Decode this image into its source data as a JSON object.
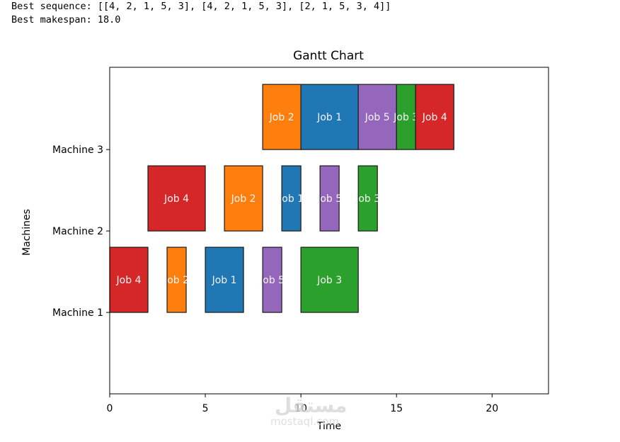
{
  "console": {
    "line1": "Best sequence: [[4, 2, 1, 5, 3], [4, 2, 1, 5, 3], [2, 1, 5, 3, 4]]",
    "line2": "Best makespan: 18.0"
  },
  "watermark": {
    "arabic": "مستقل",
    "latin": "mostaql.com"
  },
  "chart_data": {
    "type": "gantt",
    "title": "Gantt Chart",
    "xlabel": "Time",
    "ylabel": "Machines",
    "xlim": [
      0,
      22.95
    ],
    "ylim": [
      0,
      4.01
    ],
    "xticks": [
      0,
      5,
      10,
      15,
      20
    ],
    "yticks": [
      {
        "value": 1,
        "label": "Machine 1"
      },
      {
        "value": 2,
        "label": "Machine 2"
      },
      {
        "value": 3,
        "label": "Machine 3"
      }
    ],
    "bar_height": 0.8,
    "grid": false,
    "colors": {
      "Job 1": "#1f77b4",
      "Job 2": "#ff7f0e",
      "Job 3": "#2ca02c",
      "Job 4": "#d62728",
      "Job 5": "#9467bd"
    },
    "tasks": [
      {
        "machine": 1,
        "job": "Job 4",
        "start": 0,
        "end": 2
      },
      {
        "machine": 1,
        "job": "Job 2",
        "start": 3,
        "end": 4
      },
      {
        "machine": 1,
        "job": "Job 1",
        "start": 5,
        "end": 7
      },
      {
        "machine": 1,
        "job": "Job 5",
        "start": 8,
        "end": 9
      },
      {
        "machine": 1,
        "job": "Job 3",
        "start": 10,
        "end": 13
      },
      {
        "machine": 2,
        "job": "Job 4",
        "start": 2,
        "end": 5
      },
      {
        "machine": 2,
        "job": "Job 2",
        "start": 6,
        "end": 8
      },
      {
        "machine": 2,
        "job": "Job 1",
        "start": 9,
        "end": 10
      },
      {
        "machine": 2,
        "job": "Job 5",
        "start": 11,
        "end": 12
      },
      {
        "machine": 2,
        "job": "Job 3",
        "start": 13,
        "end": 14
      },
      {
        "machine": 3,
        "job": "Job 2",
        "start": 8,
        "end": 10
      },
      {
        "machine": 3,
        "job": "Job 1",
        "start": 10,
        "end": 13
      },
      {
        "machine": 3,
        "job": "Job 5",
        "start": 13,
        "end": 15
      },
      {
        "machine": 3,
        "job": "Job 3",
        "start": 15,
        "end": 16
      },
      {
        "machine": 3,
        "job": "Job 4",
        "start": 16,
        "end": 18
      }
    ]
  }
}
